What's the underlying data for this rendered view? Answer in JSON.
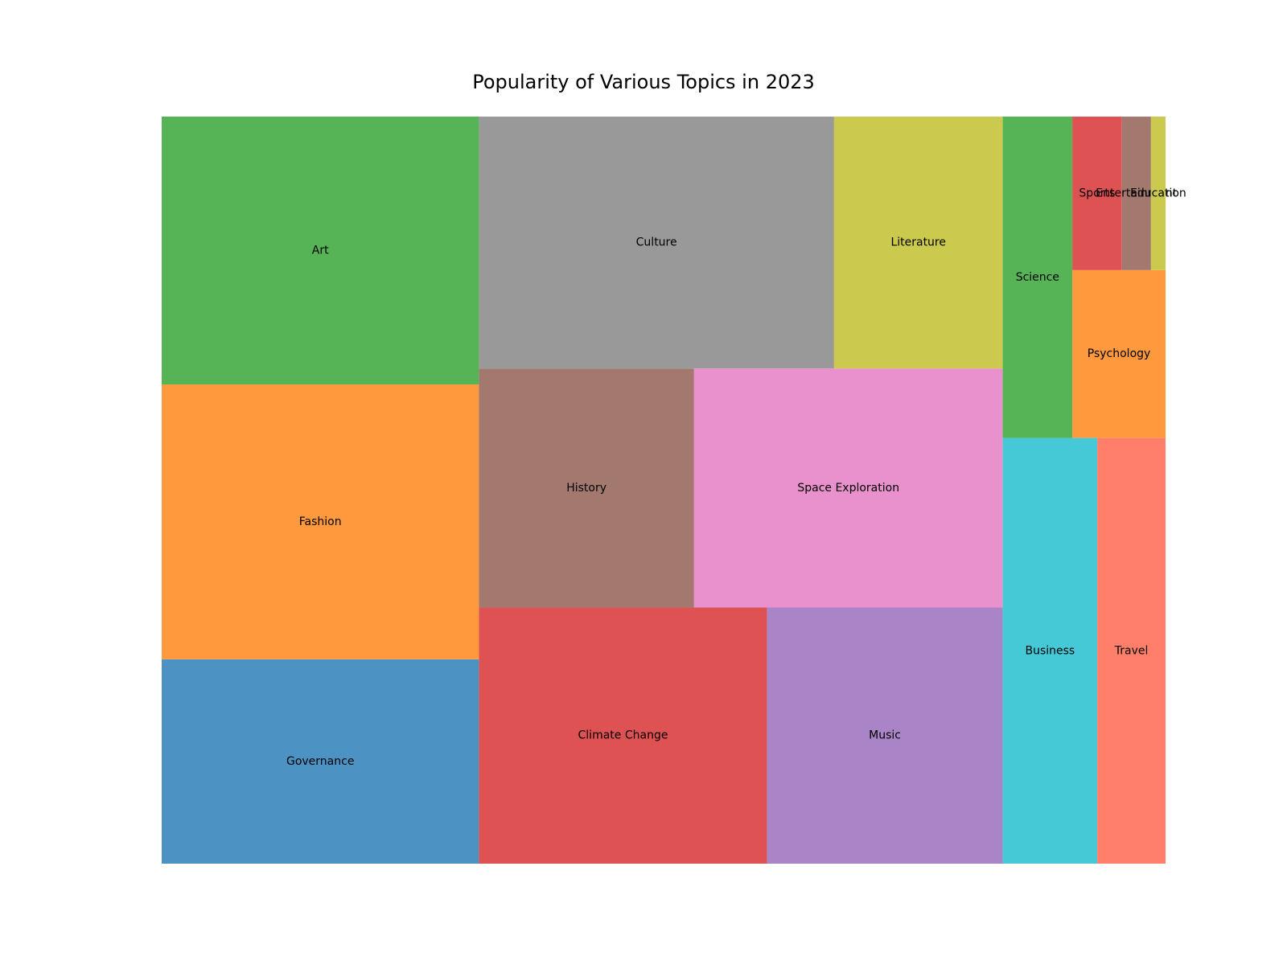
{
  "chart_data": {
    "type": "treemap",
    "title": "Popularity of Various Topics in 2023",
    "items": [
      {
        "label": "Governance",
        "value": 14.5,
        "color": "#4c92c3"
      },
      {
        "label": "Fashion",
        "value": 19.5,
        "color": "#ff993e"
      },
      {
        "label": "Art",
        "value": 19.0,
        "color": "#56b356"
      },
      {
        "label": "Climate Change",
        "value": 16.5,
        "color": "#de5253"
      },
      {
        "label": "Music",
        "value": 13.5,
        "color": "#a985c8"
      },
      {
        "label": "History",
        "value": 11.5,
        "color": "#a3796f"
      },
      {
        "label": "Space Exploration",
        "value": 16.5,
        "color": "#e891cd"
      },
      {
        "label": "Culture",
        "value": 20.0,
        "color": "#999999"
      },
      {
        "label": "Literature",
        "value": 9.5,
        "color": "#cbca4f"
      },
      {
        "label": "Business",
        "value": 9.0,
        "color": "#46c9d6"
      },
      {
        "label": "Travel",
        "value": 6.5,
        "color": "#ff7f6b"
      },
      {
        "label": "Science",
        "value": 5.0,
        "color": "#56b356"
      },
      {
        "label": "Psychology",
        "value": 3.5,
        "color": "#ff993e"
      },
      {
        "label": "Sports",
        "value": 1.7,
        "color": "#de5253"
      },
      {
        "label": "Entertainment",
        "value": 1.0,
        "color": "#a3796f"
      },
      {
        "label": "Education",
        "value": 0.5,
        "color": "#cbca4f"
      }
    ]
  }
}
